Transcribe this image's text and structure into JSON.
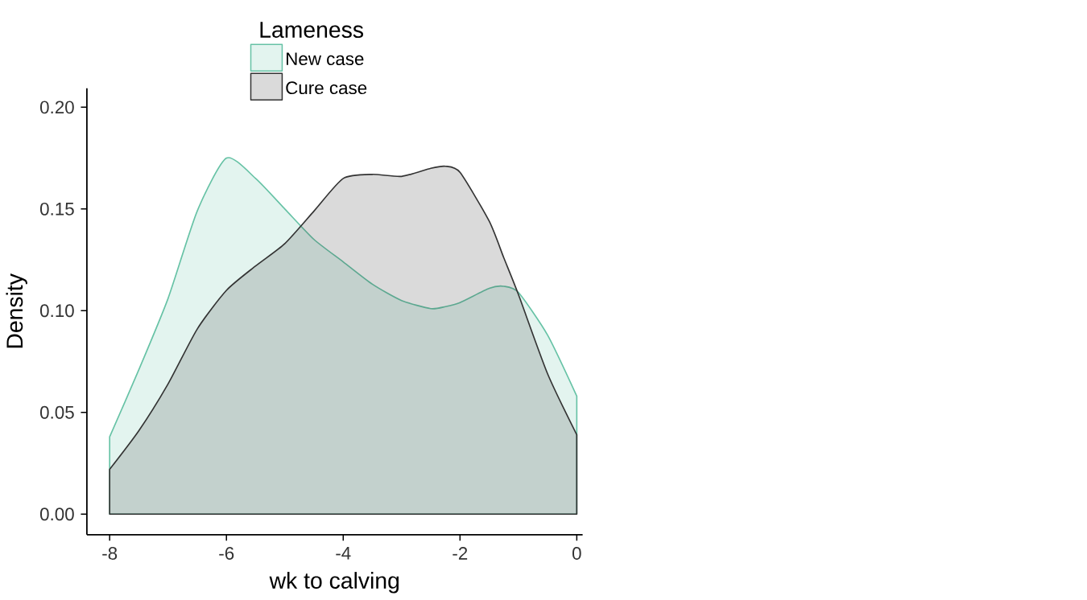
{
  "chart_data": {
    "type": "area",
    "xlabel": "wk to calving",
    "ylabel": "Density",
    "legend_title": "Lameness",
    "legend": "top",
    "xlim": [
      -8.39,
      0.1
    ],
    "ylim": [
      -0.0101,
      0.2093
    ],
    "xticks": [
      -8,
      -6,
      -4,
      -2,
      0
    ],
    "yticks": [
      {
        "value": 0,
        "label": "0.00"
      },
      {
        "value": 0.05,
        "label": "0.05"
      },
      {
        "value": 0.1,
        "label": "0.10"
      },
      {
        "value": 0.15,
        "label": "0.15"
      },
      {
        "value": 0.2,
        "label": "0.20"
      }
    ],
    "x": [
      -8,
      -7.5,
      -7,
      -6.5,
      -6,
      -5.5,
      -5,
      -4.5,
      -4,
      -3.5,
      -3,
      -2.5,
      -2.25,
      -2,
      -1.5,
      -1.25,
      -1,
      -0.5,
      0
    ],
    "series": [
      {
        "name": "New case",
        "color": "#66c2a5",
        "values": [
          0.038,
          0.071,
          0.106,
          0.149,
          0.175,
          0.165,
          0.15,
          0.135,
          0.124,
          0.113,
          0.105,
          0.101,
          0.102,
          0.104,
          0.111,
          0.112,
          0.109,
          0.088,
          0.058
        ]
      },
      {
        "name": "Cure case",
        "color": "#333333",
        "values": [
          0.022,
          0.041,
          0.064,
          0.091,
          0.11,
          0.122,
          0.133,
          0.149,
          0.165,
          0.167,
          0.166,
          0.17,
          0.171,
          0.168,
          0.144,
          0.126,
          0.108,
          0.069,
          0.039
        ]
      }
    ]
  }
}
